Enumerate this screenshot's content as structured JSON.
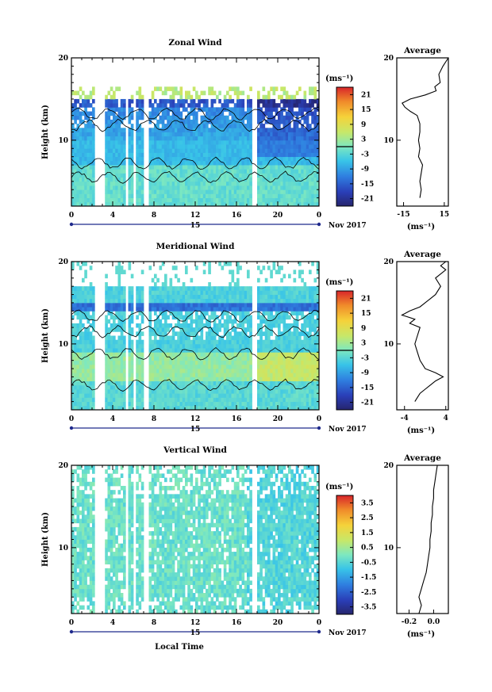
{
  "figure": {
    "colorbar_unit": "(ms⁻¹)",
    "profile_title": "Average",
    "profile_xunit": "(ms⁻¹)",
    "date_label": "Nov 2017",
    "day_label": "15",
    "xlabel_bottom": "Local Time",
    "ylabel": "Height (km)"
  },
  "chart_data": [
    {
      "type": "heatmap",
      "title": "Zonal Wind",
      "xlabel": "",
      "ylabel": "Height (km)",
      "x_ticks": [
        "0",
        "4",
        "8",
        "12",
        "16",
        "20",
        "0"
      ],
      "y_ticks": [
        "10",
        "20"
      ],
      "xlim": [
        0,
        24
      ],
      "ylim": [
        2,
        20
      ],
      "colorbar": {
        "ticks": [
          "21",
          "15",
          "9",
          "3",
          "-3",
          "-9",
          "-15",
          "-21"
        ],
        "range": [
          -24,
          24
        ]
      },
      "contour_level": 0,
      "data_gaps_hours": [
        [
          2.3,
          3.2
        ],
        [
          5.2,
          5.5
        ],
        [
          6.1,
          6.3
        ],
        [
          7.0,
          7.4
        ],
        [
          17.4,
          18.0
        ]
      ],
      "mean_profile": {
        "xlim": [
          -20,
          18
        ],
        "x_ticks": [
          "-15",
          "15"
        ],
        "y_ticks": [
          "10",
          "20"
        ],
        "height_km": [
          3,
          4,
          5,
          6,
          7,
          8,
          9,
          10,
          11,
          12,
          13,
          13.5,
          14,
          14.5,
          15,
          15.5,
          16,
          16.5,
          17,
          18,
          19,
          20
        ],
        "value_ms": [
          -3,
          -2,
          -3,
          -2,
          -1,
          -4,
          -3,
          -4,
          -3,
          -3,
          -5,
          -10,
          -14,
          -16,
          -10,
          1,
          9,
          8,
          12,
          11,
          14,
          18
        ]
      }
    },
    {
      "type": "heatmap",
      "title": "Meridional Wind",
      "xlabel": "",
      "ylabel": "Height (km)",
      "x_ticks": [
        "0",
        "4",
        "8",
        "12",
        "16",
        "20",
        "0"
      ],
      "y_ticks": [
        "10",
        "20"
      ],
      "xlim": [
        0,
        24
      ],
      "ylim": [
        2,
        20
      ],
      "colorbar": {
        "ticks": [
          "21",
          "15",
          "9",
          "3",
          "-3",
          "-9",
          "-15",
          "-21"
        ],
        "range": [
          -24,
          24
        ]
      },
      "contour_level": 0,
      "data_gaps_hours": [
        [
          2.3,
          3.2
        ],
        [
          5.2,
          5.5
        ],
        [
          6.1,
          6.3
        ],
        [
          7.0,
          7.4
        ],
        [
          17.4,
          18.0
        ]
      ],
      "mean_profile": {
        "xlim": [
          -5.5,
          4.5
        ],
        "x_ticks": [
          "-4",
          "4"
        ],
        "y_ticks": [
          "10",
          "20"
        ],
        "height_km": [
          3,
          3.5,
          4,
          4.5,
          5,
          5.5,
          6,
          6.5,
          7,
          8,
          9,
          10,
          11,
          12,
          12.5,
          13,
          13.5,
          14,
          14.5,
          15,
          15.5,
          16,
          17,
          18,
          19,
          19.5,
          20
        ],
        "value_ms": [
          -2,
          -1.5,
          -1,
          0,
          1,
          2,
          3.5,
          2,
          0,
          -1,
          -1.5,
          -2,
          -1.5,
          -1,
          -3,
          -2,
          -4.5,
          -3,
          -1,
          0,
          1,
          2,
          3,
          2,
          4,
          3,
          4
        ]
      }
    },
    {
      "type": "heatmap",
      "title": "Vertical Wind",
      "xlabel": "Local Time",
      "ylabel": "Height (km)",
      "x_ticks": [
        "0",
        "4",
        "8",
        "12",
        "16",
        "20",
        "0"
      ],
      "y_ticks": [
        "10",
        "20"
      ],
      "xlim": [
        0,
        24
      ],
      "ylim": [
        2,
        20
      ],
      "colorbar": {
        "ticks": [
          "3.5",
          "2.5",
          "1.5",
          "0.5",
          "-0.5",
          "-1.5",
          "-2.5",
          "-3.5"
        ],
        "range": [
          -4,
          4
        ]
      },
      "contour_level": null,
      "data_gaps_hours": [
        [
          2.3,
          3.2
        ],
        [
          5.2,
          5.5
        ],
        [
          6.1,
          6.3
        ],
        [
          7.0,
          7.4
        ],
        [
          17.4,
          18.0
        ]
      ],
      "mean_profile": {
        "xlim": [
          -0.3,
          0.12
        ],
        "x_ticks": [
          "-0.2",
          "0.0"
        ],
        "y_ticks": [
          "10",
          "20"
        ],
        "height_km": [
          2,
          3,
          4,
          5,
          6,
          7,
          8,
          9,
          10,
          11,
          12,
          13,
          14,
          15,
          16,
          17,
          18,
          19,
          20
        ],
        "value_ms": [
          -0.12,
          -0.1,
          -0.12,
          -0.1,
          -0.08,
          -0.06,
          -0.05,
          -0.04,
          -0.03,
          -0.03,
          -0.02,
          -0.02,
          -0.01,
          -0.01,
          0.0,
          0.0,
          0.01,
          0.02,
          0.03
        ]
      }
    }
  ]
}
